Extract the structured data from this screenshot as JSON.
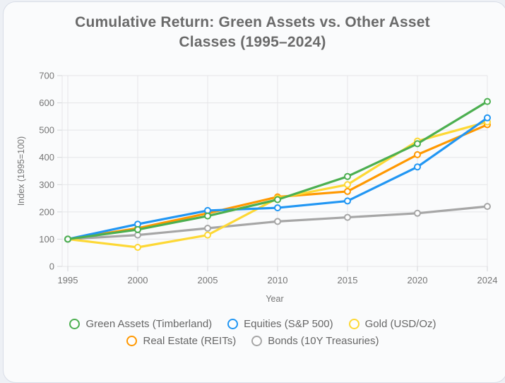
{
  "header": {
    "title_line1": "Cumulative Return: Green Assets vs. Other Asset",
    "title_line2": "Classes (1995–2024)"
  },
  "colors": {
    "page_background": "#EDF0F5",
    "card_background": "#FAFBFC",
    "card_border": "#D8DDE7",
    "grid_line": "#E5E6E8",
    "axis_line": "#D4D6D9",
    "tick_text": "#757575",
    "title_text": "#6A6A6A",
    "legend_text": "#666666"
  },
  "chart_data": {
    "type": "line",
    "title": "Cumulative Return: Green Assets vs. Other Asset Classes (1995–2024)",
    "xlabel": "Year",
    "ylabel": "Index (1995=100)",
    "ylim": [
      0,
      700
    ],
    "y_ticks": [
      0,
      100,
      200,
      300,
      400,
      500,
      600,
      700
    ],
    "categories": [
      "1995",
      "2000",
      "2005",
      "2010",
      "2015",
      "2020",
      "2024"
    ],
    "grid": true,
    "legend_position": "bottom",
    "marker_style": "hollow-circle",
    "series": [
      {
        "name": "Green Assets (Timberland)",
        "color": "#4CAF50",
        "values": [
          100,
          135,
          185,
          245,
          330,
          450,
          605
        ]
      },
      {
        "name": "Equities (S&P 500)",
        "color": "#2196F3",
        "values": [
          100,
          155,
          205,
          215,
          240,
          365,
          545
        ]
      },
      {
        "name": "Gold (USD/Oz)",
        "color": "#FDD835",
        "values": [
          100,
          70,
          115,
          250,
          300,
          460,
          530
        ]
      },
      {
        "name": "Real Estate (REITs)",
        "color": "#FF9800",
        "values": [
          100,
          140,
          195,
          255,
          275,
          410,
          520
        ]
      },
      {
        "name": "Bonds (10Y Treasuries)",
        "color": "#A6A6A6",
        "values": [
          100,
          115,
          140,
          165,
          180,
          195,
          220
        ]
      }
    ]
  }
}
